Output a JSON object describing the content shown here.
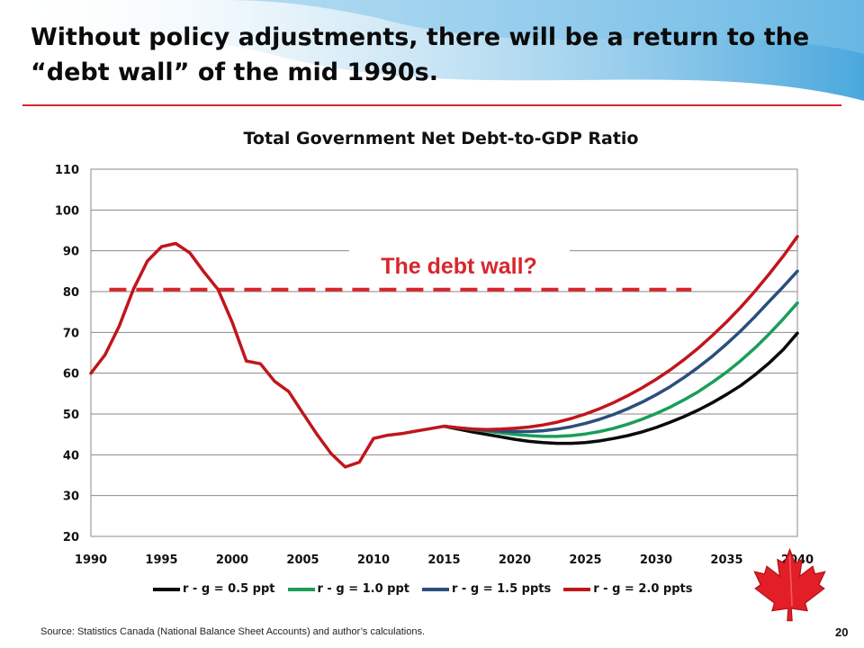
{
  "slide": {
    "title": "Without policy adjustments, there will be a return to the “debt wall” of the mid 1990s.",
    "source": "Source:  Statistics Canada (National Balance Sheet Accounts) and author’s calculations.",
    "page_number": "20",
    "logo_icon": "maple-leaf-icon",
    "accent_color": "#d8262c",
    "wave_color": "#4aa8dd"
  },
  "chart_data": {
    "type": "line",
    "title": "Total Government Net Debt-to-GDP Ratio",
    "xlabel": "",
    "ylabel": "",
    "xlim": [
      1990,
      2040
    ],
    "ylim": [
      20,
      110
    ],
    "x_ticks": [
      1990,
      1995,
      2000,
      2005,
      2010,
      2015,
      2020,
      2025,
      2030,
      2035,
      2040
    ],
    "y_ticks": [
      20,
      30,
      40,
      50,
      60,
      70,
      80,
      90,
      100,
      110
    ],
    "grid": "horizontal",
    "legend_position": "bottom",
    "annotation": {
      "text": "The debt wall?",
      "level": 80.5,
      "color": "#d8262c"
    },
    "historical": {
      "x": [
        1990,
        1991,
        1992,
        1993,
        1994,
        1995,
        1996,
        1997,
        1998,
        1999,
        2000,
        2001,
        2002,
        2003,
        2004,
        2005,
        2006,
        2007,
        2008,
        2009,
        2010,
        2011,
        2012,
        2013,
        2014,
        2015
      ],
      "y": [
        60,
        64.5,
        71.5,
        80.5,
        87.5,
        91,
        91.8,
        89.5,
        84.8,
        80.5,
        72.5,
        63,
        62.3,
        58,
        55.5,
        50.2,
        45,
        40.3,
        37,
        38.2,
        44,
        44.8,
        45.2,
        45.8,
        46.4,
        47
      ]
    },
    "series": [
      {
        "name": "r - g = 0.5 ppt",
        "color": "#0a0a0a",
        "x": [
          2015,
          2016,
          2017,
          2018,
          2019,
          2020,
          2021,
          2022,
          2023,
          2024,
          2025,
          2026,
          2027,
          2028,
          2029,
          2030,
          2031,
          2032,
          2033,
          2034,
          2035,
          2036,
          2037,
          2038,
          2039,
          2040
        ],
        "y": [
          47,
          46.3,
          45.6,
          45,
          44.4,
          43.8,
          43.3,
          43,
          42.8,
          42.8,
          43,
          43.4,
          44,
          44.7,
          45.6,
          46.7,
          48,
          49.4,
          51,
          52.8,
          54.8,
          57,
          59.6,
          62.5,
          65.8,
          69.8
        ]
      },
      {
        "name": "r - g = 1.0 ppt",
        "color": "#1a9e58",
        "x": [
          2015,
          2016,
          2017,
          2018,
          2019,
          2020,
          2021,
          2022,
          2023,
          2024,
          2025,
          2026,
          2027,
          2028,
          2029,
          2030,
          2031,
          2032,
          2033,
          2034,
          2035,
          2036,
          2037,
          2038,
          2039,
          2040
        ],
        "y": [
          47,
          46.6,
          46.2,
          45.8,
          45.4,
          45,
          44.7,
          44.5,
          44.5,
          44.7,
          45.1,
          45.7,
          46.5,
          47.5,
          48.7,
          50.1,
          51.7,
          53.5,
          55.5,
          57.8,
          60.3,
          63.1,
          66.2,
          69.6,
          73.3,
          77.2
        ]
      },
      {
        "name": "r - g = 1.5 ppts",
        "color": "#2a4f7e",
        "x": [
          2015,
          2016,
          2017,
          2018,
          2019,
          2020,
          2021,
          2022,
          2023,
          2024,
          2025,
          2026,
          2027,
          2028,
          2029,
          2030,
          2031,
          2032,
          2033,
          2034,
          2035,
          2036,
          2037,
          2038,
          2039,
          2040
        ],
        "y": [
          47,
          46.6,
          46.3,
          46,
          45.8,
          45.7,
          45.7,
          45.9,
          46.3,
          46.9,
          47.7,
          48.7,
          49.9,
          51.3,
          52.9,
          54.7,
          56.7,
          59,
          61.5,
          64.2,
          67.2,
          70.4,
          73.9,
          77.6,
          81.2,
          85
        ]
      },
      {
        "name": "r - g = 2.0 ppts",
        "color": "#c0161c",
        "x": [
          2015,
          2016,
          2017,
          2018,
          2019,
          2020,
          2021,
          2022,
          2023,
          2024,
          2025,
          2026,
          2027,
          2028,
          2029,
          2030,
          2031,
          2032,
          2033,
          2034,
          2035,
          2036,
          2037,
          2038,
          2039,
          2040
        ],
        "y": [
          47,
          46.6,
          46.3,
          46.2,
          46.3,
          46.5,
          46.8,
          47.3,
          48,
          48.9,
          50,
          51.3,
          52.8,
          54.5,
          56.4,
          58.5,
          60.8,
          63.4,
          66.2,
          69.3,
          72.6,
          76.2,
          80.1,
          84.3,
          88.7,
          93.5
        ]
      }
    ]
  }
}
